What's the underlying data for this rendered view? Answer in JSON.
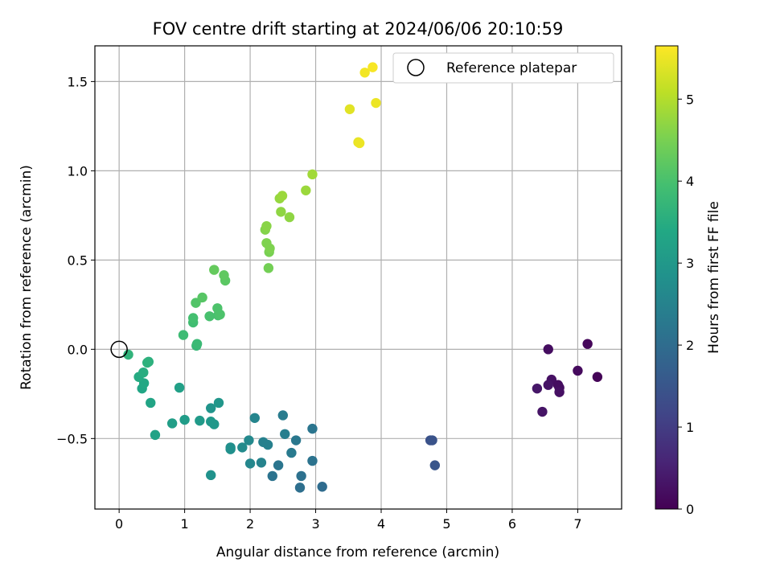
{
  "chart_data": {
    "type": "scatter",
    "title": "FOV centre drift starting at 2024/06/06 20:10:59",
    "xlabel": "Angular distance from reference (arcmin)",
    "ylabel": "Rotation from reference (arcmin)",
    "xlim": [
      -0.37,
      7.67
    ],
    "ylim": [
      -0.895,
      1.7
    ],
    "xticks": [
      0,
      1,
      2,
      3,
      4,
      5,
      6,
      7
    ],
    "xtick_labels": [
      "0",
      "1",
      "2",
      "3",
      "4",
      "5",
      "6",
      "7"
    ],
    "yticks": [
      -0.5,
      0.0,
      0.5,
      1.0,
      1.5
    ],
    "ytick_labels": [
      "−0.5",
      "0.0",
      "0.5",
      "1.0",
      "1.5"
    ],
    "grid": true,
    "legend": {
      "position": "top-right",
      "entries": [
        "Reference platepar"
      ]
    },
    "reference_point": {
      "x": 0,
      "y": 0
    },
    "colorbar": {
      "label": "Hours from first FF file",
      "min": 0,
      "max": 5.65,
      "ticks": [
        0,
        1,
        2,
        3,
        4,
        5
      ],
      "tick_labels": [
        "0",
        "1",
        "2",
        "3",
        "4",
        "5"
      ],
      "colormap": "viridis"
    },
    "series": [
      {
        "points": [
          [
            6.55,
            0.0,
            0.2
          ],
          [
            7.15,
            0.03,
            0.1
          ],
          [
            7.0,
            -0.12,
            0.15
          ],
          [
            7.3,
            -0.155,
            0.05
          ],
          [
            6.6,
            -0.17,
            0.25
          ],
          [
            6.55,
            -0.2,
            0.3
          ],
          [
            6.7,
            -0.2,
            0.2
          ],
          [
            6.72,
            -0.215,
            0.2
          ],
          [
            6.38,
            -0.22,
            0.35
          ],
          [
            6.72,
            -0.24,
            0.25
          ],
          [
            6.46,
            -0.35,
            0.3
          ],
          [
            4.75,
            -0.51,
            1.4
          ],
          [
            4.78,
            -0.51,
            1.45
          ],
          [
            4.82,
            -0.65,
            1.5
          ],
          [
            3.1,
            -0.77,
            2.0
          ],
          [
            2.76,
            -0.775,
            2.05
          ],
          [
            2.78,
            -0.71,
            2.1
          ],
          [
            2.34,
            -0.71,
            2.15
          ],
          [
            2.95,
            -0.625,
            2.15
          ],
          [
            2.43,
            -0.65,
            2.2
          ],
          [
            2.95,
            -0.445,
            2.2
          ],
          [
            2.7,
            -0.51,
            2.25
          ],
          [
            2.63,
            -0.58,
            2.3
          ],
          [
            2.5,
            -0.37,
            2.35
          ],
          [
            2.53,
            -0.475,
            2.4
          ],
          [
            2.27,
            -0.535,
            2.45
          ],
          [
            2.2,
            -0.52,
            2.45
          ],
          [
            2.17,
            -0.635,
            2.5
          ],
          [
            2.07,
            -0.385,
            2.55
          ],
          [
            2.0,
            -0.64,
            2.6
          ],
          [
            1.98,
            -0.51,
            2.65
          ],
          [
            1.88,
            -0.55,
            2.7
          ],
          [
            1.7,
            -0.55,
            2.75
          ],
          [
            1.7,
            -0.56,
            2.8
          ],
          [
            1.4,
            -0.705,
            2.85
          ],
          [
            1.4,
            -0.33,
            2.9
          ],
          [
            1.52,
            -0.3,
            2.95
          ],
          [
            1.4,
            -0.405,
            3.0
          ],
          [
            1.45,
            -0.42,
            3.0
          ],
          [
            1.23,
            -0.4,
            3.05
          ],
          [
            1.0,
            -0.395,
            3.1
          ],
          [
            0.81,
            -0.415,
            3.15
          ],
          [
            0.92,
            -0.215,
            3.2
          ],
          [
            0.55,
            -0.48,
            3.25
          ],
          [
            0.48,
            -0.3,
            3.3
          ],
          [
            0.35,
            -0.22,
            3.35
          ],
          [
            0.38,
            -0.19,
            3.4
          ],
          [
            0.3,
            -0.155,
            3.45
          ],
          [
            0.37,
            -0.13,
            3.5
          ],
          [
            0.45,
            -0.07,
            3.55
          ],
          [
            0.43,
            -0.075,
            3.6
          ],
          [
            0.14,
            -0.03,
            3.65
          ],
          [
            1.18,
            0.02,
            3.75
          ],
          [
            1.19,
            0.03,
            3.8
          ],
          [
            0.98,
            0.08,
            3.85
          ],
          [
            1.13,
            0.15,
            3.9
          ],
          [
            1.13,
            0.175,
            3.95
          ],
          [
            1.38,
            0.185,
            4.0
          ],
          [
            1.51,
            0.19,
            4.0
          ],
          [
            1.54,
            0.195,
            4.05
          ],
          [
            1.5,
            0.23,
            4.05
          ],
          [
            1.17,
            0.26,
            4.1
          ],
          [
            1.27,
            0.29,
            4.15
          ],
          [
            1.62,
            0.385,
            4.2
          ],
          [
            1.6,
            0.415,
            4.25
          ],
          [
            1.45,
            0.445,
            4.3
          ],
          [
            2.28,
            0.455,
            4.45
          ],
          [
            2.29,
            0.545,
            4.5
          ],
          [
            2.3,
            0.565,
            4.55
          ],
          [
            2.25,
            0.595,
            4.55
          ],
          [
            2.23,
            0.67,
            4.6
          ],
          [
            2.25,
            0.69,
            4.65
          ],
          [
            2.6,
            0.74,
            4.7
          ],
          [
            2.47,
            0.77,
            4.7
          ],
          [
            2.45,
            0.845,
            4.75
          ],
          [
            2.49,
            0.86,
            4.8
          ],
          [
            2.85,
            0.89,
            4.8
          ],
          [
            2.95,
            0.98,
            4.85
          ],
          [
            3.65,
            1.16,
            5.45
          ],
          [
            3.67,
            1.155,
            5.5
          ],
          [
            3.52,
            1.345,
            5.4
          ],
          [
            3.92,
            1.38,
            5.5
          ],
          [
            3.75,
            1.55,
            5.55
          ],
          [
            3.87,
            1.58,
            5.6
          ]
        ]
      }
    ]
  }
}
